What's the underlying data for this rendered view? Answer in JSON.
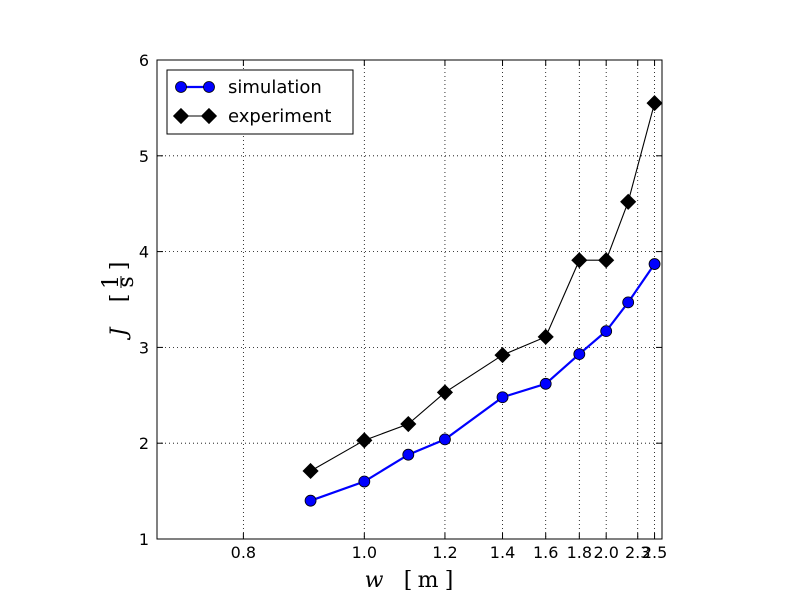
{
  "chart_data": {
    "type": "line",
    "xlabel_symbol": "w",
    "xlabel_unit": "m",
    "ylabel_symbol": "J",
    "ylabel_unit_num": "1",
    "ylabel_unit_den": "s",
    "x_ticks": [
      0.8,
      1.0,
      1.2,
      1.4,
      1.6,
      1.8,
      2.0,
      2.3,
      2.5
    ],
    "x_tick_labels": [
      "0.8",
      "1.0",
      "1.2",
      "1.4",
      "1.6",
      "1.8",
      "2.0",
      "2.3",
      "2.5"
    ],
    "y_ticks": [
      1,
      2,
      3,
      4,
      5,
      6
    ],
    "y_tick_labels": [
      "1",
      "2",
      "3",
      "4",
      "5",
      "6"
    ],
    "xlim": [
      0.7,
      2.6
    ],
    "ylim": [
      1,
      6
    ],
    "x_scale": "reciprocal",
    "grid": true,
    "legend_position": "top-left",
    "series": [
      {
        "name": "simulation",
        "color": "#0000ff",
        "marker": "circle",
        "x": [
          0.9,
          1.0,
          1.1,
          1.2,
          1.4,
          1.6,
          1.8,
          2.0,
          2.2,
          2.5
        ],
        "y": [
          1.4,
          1.6,
          1.88,
          2.04,
          2.48,
          2.62,
          2.93,
          3.17,
          3.47,
          3.87
        ]
      },
      {
        "name": "experiment",
        "color": "#000000",
        "marker": "diamond",
        "x": [
          0.9,
          1.0,
          1.1,
          1.2,
          1.4,
          1.6,
          1.8,
          2.0,
          2.2,
          2.5
        ],
        "y": [
          1.71,
          2.03,
          2.2,
          2.53,
          2.92,
          3.11,
          3.91,
          3.91,
          4.52,
          5.55
        ]
      }
    ]
  }
}
